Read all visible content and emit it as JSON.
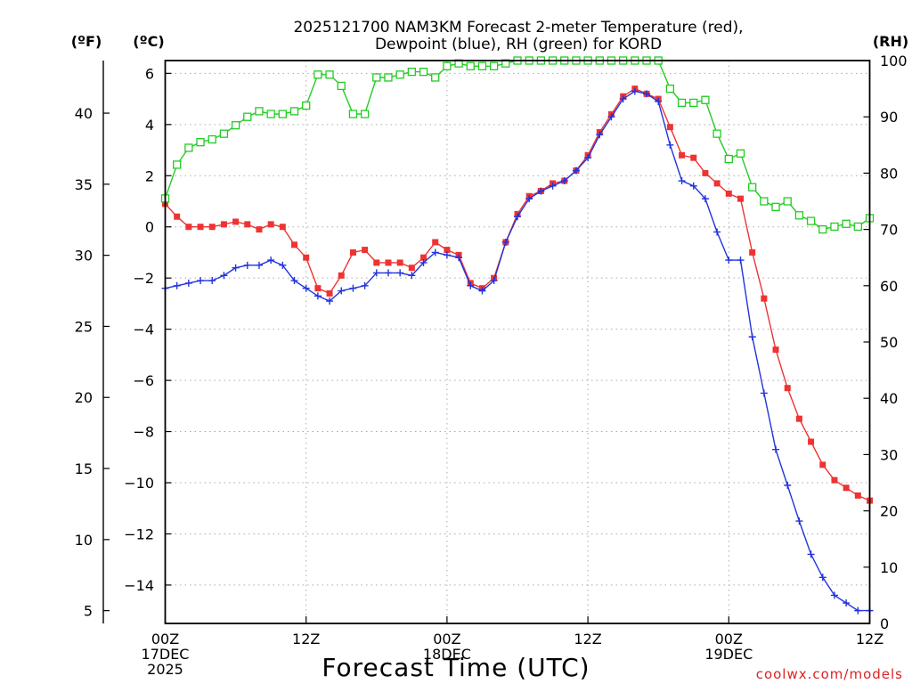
{
  "chart_data": {
    "type": "line",
    "title": "2025121700 NAM3KM Forecast 2-meter Temperature (red),",
    "subtitle": "Dewpoint (blue), RH (green) for KORD",
    "xlabel": "Forecast Time (UTC)",
    "watermark": "coolwx.com/models",
    "unit_labels": {
      "fahrenheit": "(ºF)",
      "celsius": "(ºC)",
      "rh": "(RH)"
    },
    "x_range": [
      0,
      60
    ],
    "celsius_range": [
      -15.5,
      6.5
    ],
    "rh_range": [
      0,
      100
    ],
    "x_ticks": [
      {
        "x": 0,
        "labels": [
          "00Z",
          "17DEC",
          "2025"
        ]
      },
      {
        "x": 12,
        "labels": [
          "12Z"
        ]
      },
      {
        "x": 24,
        "labels": [
          "00Z",
          "18DEC"
        ]
      },
      {
        "x": 36,
        "labels": [
          "12Z"
        ]
      },
      {
        "x": 48,
        "labels": [
          "00Z",
          "19DEC"
        ]
      },
      {
        "x": 60,
        "labels": [
          "12Z"
        ]
      }
    ],
    "celsius_ticks": [
      6,
      4,
      2,
      0,
      -2,
      -4,
      -6,
      -8,
      -10,
      -12,
      -14
    ],
    "celsius_tick_labels": [
      "6",
      "4",
      "2",
      "0",
      "−2",
      "−4",
      "−6",
      "−8",
      "−10",
      "−12",
      "−14"
    ],
    "fahrenheit_ticks": [
      40,
      35,
      30,
      25,
      20,
      15,
      10,
      5
    ],
    "rh_ticks": [
      100,
      90,
      80,
      70,
      60,
      50,
      40,
      30,
      20,
      10,
      0
    ],
    "colors": {
      "temperature": "#ee3333",
      "dewpoint": "#2233dd",
      "rh": "#22cc22",
      "grid": "#aaaaaa",
      "watermark": "#dd2222"
    },
    "series": [
      {
        "name": "Temperature",
        "unit": "C",
        "color": "#ee3333",
        "marker": "filled-square",
        "values": [
          0.9,
          0.4,
          0.0,
          0.0,
          0.0,
          0.1,
          0.2,
          0.1,
          -0.1,
          0.1,
          0.0,
          -0.7,
          -1.2,
          -2.4,
          -2.6,
          -1.9,
          -1.0,
          -0.9,
          -1.4,
          -1.4,
          -1.4,
          -1.6,
          -1.2,
          -0.6,
          -0.9,
          -1.1,
          -2.2,
          -2.4,
          -2.0,
          -0.6,
          0.5,
          1.2,
          1.4,
          1.7,
          1.8,
          2.2,
          2.8,
          3.7,
          4.4,
          5.1,
          5.4,
          5.2,
          5.0,
          3.9,
          2.8,
          2.7,
          2.1,
          1.7,
          1.3,
          1.1,
          -1.0,
          -2.8,
          -4.8,
          -6.3,
          -7.5,
          -8.4,
          -9.3,
          -9.9,
          -10.2,
          -10.5,
          -10.7
        ]
      },
      {
        "name": "Dewpoint",
        "unit": "C",
        "color": "#2233dd",
        "marker": "plus",
        "values": [
          -2.4,
          -2.3,
          -2.2,
          -2.1,
          -2.1,
          -1.9,
          -1.6,
          -1.5,
          -1.5,
          -1.3,
          -1.5,
          -2.1,
          -2.4,
          -2.7,
          -2.9,
          -2.5,
          -2.4,
          -2.3,
          -1.8,
          -1.8,
          -1.8,
          -1.9,
          -1.4,
          -1.0,
          -1.1,
          -1.2,
          -2.3,
          -2.5,
          -2.1,
          -0.6,
          0.4,
          1.1,
          1.4,
          1.6,
          1.8,
          2.2,
          2.7,
          3.6,
          4.3,
          5.0,
          5.3,
          5.2,
          4.9,
          3.2,
          1.8,
          1.6,
          1.1,
          -0.2,
          -1.3,
          -1.3,
          -4.3,
          -6.5,
          -8.7,
          -10.1,
          -11.5,
          -12.8,
          -13.7,
          -14.4,
          -14.7,
          -15.0,
          -15.0
        ]
      },
      {
        "name": "RH",
        "unit": "%",
        "color": "#22cc22",
        "marker": "open-square",
        "values": [
          75.5,
          81.5,
          84.5,
          85.5,
          86.0,
          87.0,
          88.5,
          90.0,
          91.0,
          90.5,
          90.5,
          91.0,
          92.0,
          97.5,
          97.5,
          95.5,
          90.5,
          90.5,
          97.0,
          97.0,
          97.5,
          98.0,
          98.0,
          97.0,
          99.0,
          99.5,
          99.0,
          99.0,
          99.0,
          99.5,
          100.0,
          100.0,
          100.0,
          100.0,
          100.0,
          100.0,
          100.0,
          100.0,
          100.0,
          100.0,
          100.0,
          100.0,
          100.0,
          95.0,
          92.5,
          92.5,
          93.0,
          87.0,
          82.5,
          83.5,
          77.5,
          75.0,
          74.0,
          75.0,
          72.5,
          71.5,
          70.0,
          70.5,
          71.0,
          70.5,
          72.0
        ]
      }
    ]
  }
}
